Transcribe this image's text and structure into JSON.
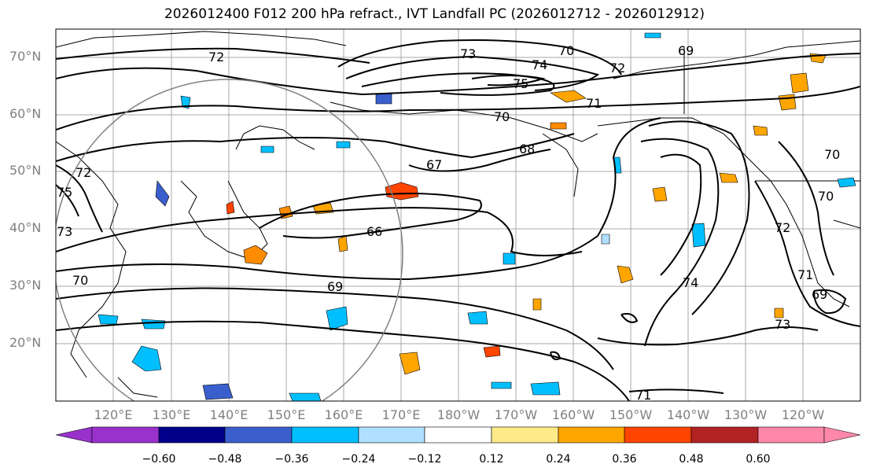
{
  "title": "2026012400 F012 200 hPa refract., IVT Landfall PC (2026012712 - 2026012912)",
  "lat_labels": [
    "70°N",
    "60°N",
    "50°N",
    "40°N",
    "30°N",
    "20°N"
  ],
  "lon_labels": [
    "120°E",
    "130°E",
    "140°E",
    "150°E",
    "160°E",
    "170°E",
    "180°W",
    "170°W",
    "160°W",
    "150°W",
    "140°W",
    "130°W",
    "120°W"
  ],
  "contour_labels": [
    "72",
    "73",
    "70",
    "69",
    "74",
    "75",
    "72",
    "71",
    "70",
    "67",
    "66",
    "69",
    "70",
    "72",
    "75",
    "73",
    "70",
    "70",
    "68",
    "71",
    "74",
    "72",
    "69",
    "73",
    "71"
  ],
  "colorbar": {
    "ticks": [
      "−0.60",
      "−0.48",
      "−0.36",
      "−0.24",
      "−0.12",
      "0.12",
      "0.24",
      "0.36",
      "0.48",
      "0.60"
    ],
    "colors": [
      "#9932cc",
      "#00008b",
      "#3a5fcd",
      "#00bfff",
      "#b0e0ff",
      "#ffffff",
      "#ffea8a",
      "#ffa500",
      "#ff4500",
      "#b22222",
      "#ff88aa"
    ]
  },
  "colors": {
    "positive_fill": "#ffa500",
    "positive_strong": "#ff4500",
    "negative_fill": "#00bfff",
    "negative_strong": "#3a5fcd",
    "grid": "#a9a9a9",
    "contour": "#000000"
  }
}
